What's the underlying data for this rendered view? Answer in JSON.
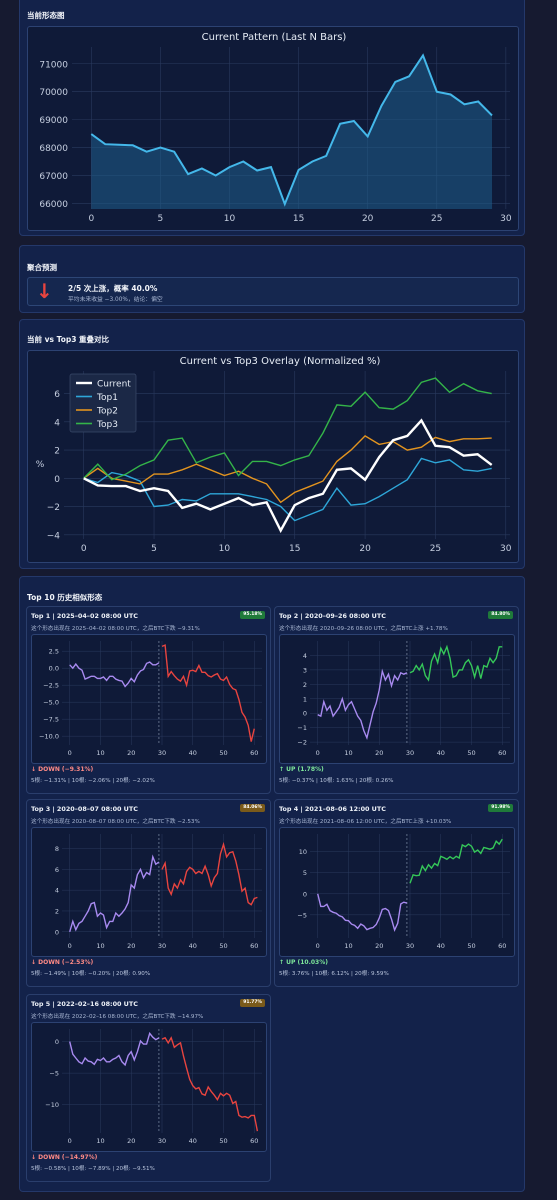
{
  "sections": {
    "current_pattern": "当前形态图",
    "aggregate": "聚合预测",
    "overlay": "当前 vs Top3 重叠对比",
    "top10": "Top 10 历史相似形态"
  },
  "aggregate": {
    "arrow": "↓",
    "headline": "2/5 次上涨，概率 40.0%",
    "detail": "平均未来收益 −3.00%，结论：偏空"
  },
  "colors": {
    "accent_blue": "#44b8ea",
    "up": "#35c759",
    "down": "#e8443f",
    "pattern": "#a88af0",
    "top1": "#2ea6d8",
    "top2": "#e3941f",
    "top3": "#34b449",
    "current": "#ffffff"
  },
  "chart_data": [
    {
      "type": "area",
      "title": "Current Pattern (Last N Bars)",
      "x": [
        0,
        1,
        2,
        3,
        4,
        5,
        6,
        7,
        8,
        9,
        10,
        11,
        12,
        13,
        14,
        15,
        16,
        17,
        18,
        19,
        20,
        21,
        22,
        23,
        24,
        25,
        26,
        27,
        28,
        29
      ],
      "values": [
        68480,
        68120,
        68100,
        68080,
        67850,
        68000,
        67850,
        67050,
        67250,
        67000,
        67300,
        67500,
        67180,
        67300,
        65980,
        67200,
        67500,
        67700,
        68850,
        68950,
        68400,
        69500,
        70350,
        70550,
        71300,
        70000,
        69900,
        69550,
        69650,
        69150
      ],
      "ylim": [
        65800,
        71600
      ],
      "yticks": [
        66000,
        67000,
        68000,
        69000,
        70000,
        71000
      ],
      "xticks": [
        0,
        5,
        10,
        15,
        20,
        25,
        30
      ],
      "grid": true
    },
    {
      "type": "line",
      "title": "Current vs Top3 Overlay (Normalized %)",
      "ylabel": "%",
      "x": [
        0,
        1,
        2,
        3,
        4,
        5,
        6,
        7,
        8,
        9,
        10,
        11,
        12,
        13,
        14,
        15,
        16,
        17,
        18,
        19,
        20,
        21,
        22,
        23,
        24,
        25,
        26,
        27,
        28,
        29
      ],
      "series": [
        {
          "name": "Current",
          "values": [
            0,
            -0.5,
            -0.55,
            -0.55,
            -0.9,
            -0.7,
            -0.9,
            -2.1,
            -1.8,
            -2.2,
            -1.8,
            -1.4,
            -1.9,
            -1.7,
            -3.7,
            -1.9,
            -1.4,
            -1.1,
            0.6,
            0.7,
            -0.1,
            1.5,
            2.7,
            3.0,
            4.1,
            2.3,
            2.2,
            1.6,
            1.7,
            0.95
          ]
        },
        {
          "name": "Top1",
          "values": [
            0,
            -0.3,
            0.4,
            0.2,
            -0.2,
            -2.0,
            -1.9,
            -1.5,
            -1.6,
            -1.1,
            -1.1,
            -1.1,
            -1.3,
            -1.5,
            -2.0,
            -3.0,
            -2.6,
            -2.2,
            -0.7,
            -1.9,
            -1.8,
            -1.3,
            -0.7,
            -0.1,
            1.4,
            1.1,
            1.3,
            0.6,
            0.5,
            0.7
          ]
        },
        {
          "name": "Top2",
          "values": [
            0,
            0.7,
            0.0,
            -0.2,
            -0.4,
            0.3,
            0.3,
            0.6,
            1.0,
            0.6,
            0.2,
            0.5,
            0.0,
            -0.4,
            -1.7,
            -1.0,
            -0.6,
            -0.2,
            1.2,
            2.0,
            3.0,
            2.4,
            2.6,
            2.0,
            2.2,
            2.9,
            2.6,
            2.8,
            2.8,
            2.85
          ]
        },
        {
          "name": "Top3",
          "values": [
            0,
            1.0,
            -0.1,
            0.3,
            0.9,
            1.3,
            2.7,
            2.85,
            1.1,
            1.5,
            1.8,
            0.2,
            1.2,
            1.2,
            0.9,
            1.3,
            1.6,
            3.2,
            5.2,
            5.1,
            6.1,
            5.0,
            4.9,
            5.5,
            6.8,
            7.1,
            6.1,
            6.7,
            6.2,
            6.0
          ]
        }
      ],
      "ylim": [
        -4.3,
        7.6
      ],
      "yticks": [
        -4,
        -2,
        0,
        2,
        4,
        6
      ],
      "xticks": [
        0,
        5,
        10,
        15,
        20,
        25,
        30
      ],
      "legend": "top-left",
      "grid": true
    },
    {
      "type": "line",
      "name": "Top 1",
      "split": 29,
      "ylim": [
        -11.3,
        4.0
      ],
      "yticks": [
        -10.0,
        -7.5,
        -5.0,
        -2.5,
        0.0,
        2.5
      ],
      "ytick_labels": [
        "−10.0",
        "−7.5",
        "−5.0",
        "−2.5",
        "0.0",
        "2.5"
      ],
      "xticks": [
        0,
        10,
        20,
        30,
        40,
        50,
        60
      ],
      "pattern": [
        0.5,
        0,
        0.6,
        0,
        -0.3,
        -1.6,
        -1.4,
        -1.2,
        -1.2,
        -1.5,
        -1.5,
        -1.3,
        -1.8,
        -1.2,
        -1.2,
        -1.6,
        -1.8,
        -1.9,
        -2.7,
        -2.2,
        -1.5,
        -2,
        -1,
        -0.4,
        -0.2,
        0.7,
        0.9,
        0.5,
        0.5,
        0.8
      ],
      "future": [
        3.2,
        3.4,
        -1.2,
        -0.5,
        -1.1,
        -1.6,
        -1.9,
        -1.2,
        -2.5,
        -0.4,
        -0.3,
        -0.5,
        0.4,
        -0.6,
        -0.6,
        -1.1,
        -1.3,
        -1.0,
        -0.8,
        -1.6,
        -1.8,
        -1.3,
        -2.4,
        -3.0,
        -3.2,
        -4.6,
        -6.5,
        -7.2,
        -8.4,
        -10.8,
        -8.9
      ]
    },
    {
      "type": "line",
      "name": "Top 2",
      "split": 29,
      "ylim": [
        -2.2,
        5.0
      ],
      "yticks": [
        -2,
        -1,
        0,
        1,
        2,
        3,
        4
      ],
      "xticks": [
        0,
        10,
        20,
        30,
        40,
        50,
        60
      ],
      "pattern": [
        -0.1,
        -0.2,
        0.8,
        0.2,
        0.5,
        -0.2,
        0.1,
        0.4,
        1.0,
        0.2,
        0.6,
        0.8,
        0.3,
        -0.2,
        -0.5,
        -1.2,
        -1.7,
        -0.8,
        0.1,
        0.7,
        1.6,
        2.9,
        2.3,
        2.7,
        1.9,
        2.6,
        2.3,
        2.8,
        2.7,
        2.8
      ],
      "future": [
        2.8,
        2.9,
        3.3,
        3.0,
        3.4,
        2.6,
        2.3,
        3.6,
        4.1,
        3.5,
        4.5,
        4.1,
        4.6,
        3.8,
        2.5,
        2.6,
        3.0,
        3.0,
        3.5,
        3.7,
        3.3,
        2.5,
        3.3,
        2.4,
        3.3,
        3.2,
        3.8,
        3.5,
        3.8,
        4.6,
        4.6
      ]
    },
    {
      "type": "line",
      "name": "Top 3",
      "split": 29,
      "ylim": [
        -0.6,
        9.4
      ],
      "yticks": [
        0,
        2,
        4,
        6,
        8
      ],
      "xticks": [
        0,
        10,
        20,
        30,
        40,
        50,
        60
      ],
      "pattern": [
        0,
        1,
        0.2,
        0.8,
        1,
        1.5,
        2,
        2.7,
        2.8,
        1.5,
        1.8,
        1.6,
        0.4,
        1,
        1,
        1.8,
        1.5,
        1.8,
        2.2,
        2.8,
        4.5,
        4.2,
        5.5,
        6,
        5.2,
        5.7,
        5.5,
        7.2,
        6.5,
        6.7
      ],
      "future": [
        6,
        6.6,
        4.2,
        3.6,
        4.6,
        4.2,
        5,
        4.6,
        5.8,
        6.2,
        6.0,
        5.6,
        5.8,
        5.6,
        6.3,
        5.5,
        4.4,
        5.2,
        5.6,
        7.5,
        8.4,
        7.2,
        7.6,
        7.7,
        6.8,
        5.5,
        3.9,
        4.2,
        2.8,
        2.6,
        3.2,
        3.3
      ]
    },
    {
      "type": "line",
      "name": "Top 4",
      "split": 29,
      "ylim": [
        -10.5,
        14.2
      ],
      "yticks": [
        -5,
        0,
        5,
        10
      ],
      "xticks": [
        0,
        10,
        20,
        30,
        40,
        50,
        60
      ],
      "pattern": [
        0,
        -3,
        -3,
        -2.5,
        -4,
        -4.4,
        -4.6,
        -5.2,
        -5.5,
        -6.3,
        -6.4,
        -7.2,
        -7.5,
        -8.2,
        -7.2,
        -7.6,
        -8.5,
        -8.2,
        -8,
        -7.3,
        -5.8,
        -3.7,
        -3.5,
        -4,
        -6,
        -8.6,
        -7,
        -2.4,
        -2,
        -2.2
      ],
      "future": [
        2.5,
        4.5,
        4.3,
        4.4,
        6.6,
        5.5,
        6.9,
        6.1,
        7.2,
        6.7,
        8.9,
        8.6,
        8.2,
        8.8,
        8.3,
        8.9,
        8.5,
        11.6,
        11.2,
        11.8,
        11.3,
        9.9,
        10.4,
        9.6,
        11.0,
        10.8,
        10.6,
        10.9,
        12.5,
        11.8,
        13.0
      ]
    },
    {
      "type": "line",
      "name": "Top 5",
      "split": 29,
      "ylim": [
        -14.5,
        2.0
      ],
      "yticks": [
        -10,
        -5,
        0
      ],
      "xticks": [
        0,
        10,
        20,
        30,
        40,
        50,
        60
      ],
      "pattern": [
        0,
        -2,
        -2.6,
        -3.2,
        -3.5,
        -2.6,
        -3.1,
        -3.2,
        -3.6,
        -2.8,
        -3,
        -2.6,
        -3.2,
        -3.2,
        -2.8,
        -2.6,
        -2.2,
        -3.2,
        -3.7,
        -2.2,
        -1.6,
        -2.9,
        -1.6,
        0.1,
        -0.4,
        -0.4,
        1.3,
        0.7,
        0.3,
        0.6
      ],
      "future": [
        0.4,
        0.6,
        -0.2,
        0.6,
        -0.9,
        -0.5,
        -0.2,
        -2.3,
        -4.2,
        -6,
        -7,
        -7.5,
        -7.3,
        -8.3,
        -8.5,
        -7.2,
        -7.9,
        -8.5,
        -9.2,
        -8.2,
        -8.6,
        -8.2,
        -8.5,
        -9.8,
        -9.5,
        -11.7,
        -12.0,
        -11.9,
        -12.1,
        -11.7,
        -11.7,
        -14.2
      ]
    }
  ],
  "cards": [
    {
      "head": "Top 1 | 2025–04–02 08:00 UTC",
      "badge": "95.18%",
      "sub": "这个形态出现在 2025–04–02 08:00 UTC，之后BTC下跌 −9.31%",
      "dir": "↓ DOWN (−9.31%)",
      "stats": "5根: −1.31% | 10根: −2.06% | 20根: −2.02%",
      "up": false
    },
    {
      "head": "Top 2 | 2020–09–26 08:00 UTC",
      "badge": "84.80%",
      "sub": "这个形态出现在 2020–09–26 08:00 UTC，之后BTC上涨 +1.78%",
      "dir": "↑ UP (1.78%)",
      "stats": "5根: −0.37% | 10根: 1.63% | 20根: 0.26%",
      "up": true
    },
    {
      "head": "Top 3 | 2020–08–07 08:00 UTC",
      "badge": "84.06%",
      "sub": "这个形态出现在 2020–08–07 08:00 UTC，之后BTC下跌 −2.53%",
      "dir": "↓ DOWN (−2.53%)",
      "stats": "5根: −1.49% | 10根: −0.20% | 20根: 0.90%",
      "up": false
    },
    {
      "head": "Top 4 | 2021–08–06 12:00 UTC",
      "badge": "91.98%",
      "sub": "这个形态出现在 2021–08–06 12:00 UTC，之后BTC上涨 +10.03%",
      "dir": "↑ UP (10.03%)",
      "stats": "5根: 3.76% | 10根: 6.12% | 20根: 9.59%",
      "up": true
    },
    {
      "head": "Top 5 | 2022–02–16 08:00 UTC",
      "badge": "91.77%",
      "sub": "这个形态出现在 2022–02–16 08:00 UTC，之后BTC下跌 −14.97%",
      "dir": "↓ DOWN (−14.97%)",
      "stats": "5根: −0.58% | 10根: −7.89% | 20根: −9.51%",
      "up": false
    }
  ]
}
